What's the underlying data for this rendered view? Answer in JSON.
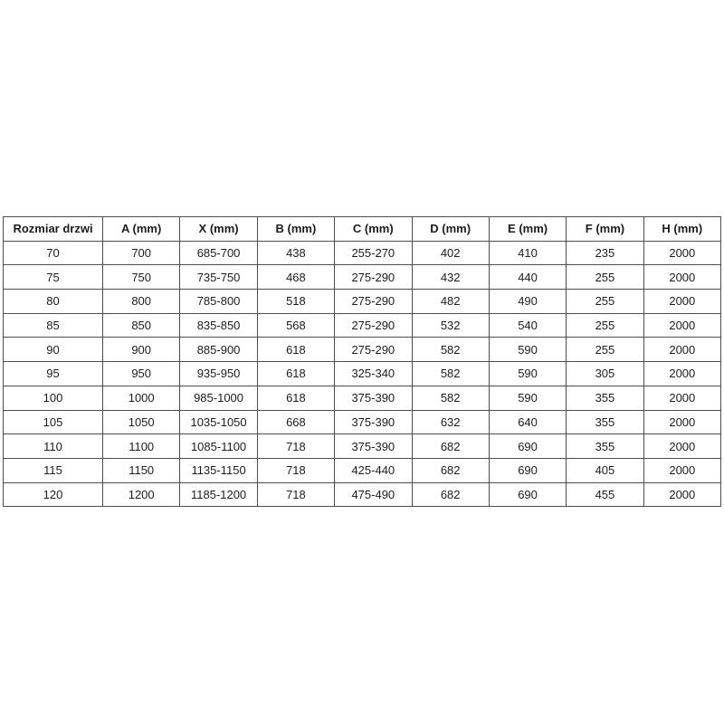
{
  "table": {
    "headers": [
      "Rozmiar drzwi",
      "A (mm)",
      "X (mm)",
      "B (mm)",
      "C (mm)",
      "D (mm)",
      "E (mm)",
      "F (mm)",
      "H (mm)"
    ],
    "rows": [
      [
        "70",
        "700",
        "685-700",
        "438",
        "255-270",
        "402",
        "410",
        "235",
        "2000"
      ],
      [
        "75",
        "750",
        "735-750",
        "468",
        "275-290",
        "432",
        "440",
        "255",
        "2000"
      ],
      [
        "80",
        "800",
        "785-800",
        "518",
        "275-290",
        "482",
        "490",
        "255",
        "2000"
      ],
      [
        "85",
        "850",
        "835-850",
        "568",
        "275-290",
        "532",
        "540",
        "255",
        "2000"
      ],
      [
        "90",
        "900",
        "885-900",
        "618",
        "275-290",
        "582",
        "590",
        "255",
        "2000"
      ],
      [
        "95",
        "950",
        "935-950",
        "618",
        "325-340",
        "582",
        "590",
        "305",
        "2000"
      ],
      [
        "100",
        "1000",
        "985-1000",
        "618",
        "375-390",
        "582",
        "590",
        "355",
        "2000"
      ],
      [
        "105",
        "1050",
        "1035-1050",
        "668",
        "375-390",
        "632",
        "640",
        "355",
        "2000"
      ],
      [
        "110",
        "1100",
        "1085-1100",
        "718",
        "375-390",
        "682",
        "690",
        "355",
        "2000"
      ],
      [
        "115",
        "1150",
        "1135-1150",
        "718",
        "425-440",
        "682",
        "690",
        "405",
        "2000"
      ],
      [
        "120",
        "1200",
        "1185-1200",
        "718",
        "475-490",
        "682",
        "690",
        "455",
        "2000"
      ]
    ]
  },
  "colors": {
    "border": "#4d4d4d",
    "text": "#1c1c1c",
    "background": "#ffffff"
  }
}
